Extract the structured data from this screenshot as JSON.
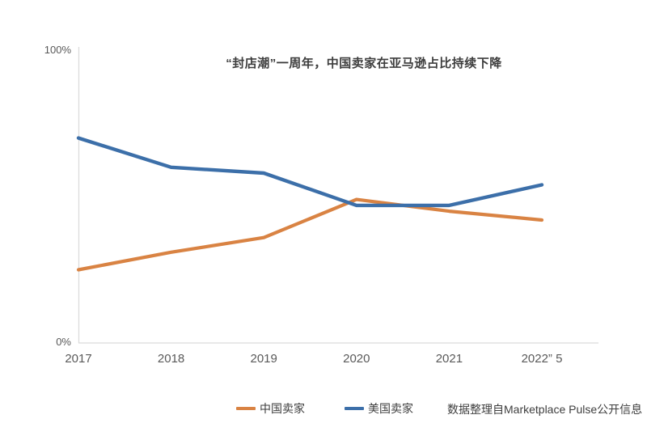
{
  "title": {
    "text": "“封店潮”一周年，中国卖家在亚马逊占比持续下降"
  },
  "y_axis": {
    "top_label": "100%",
    "bottom_label": "0%"
  },
  "legend": {
    "items": [
      {
        "label": "中国卖家",
        "color": "#d98343"
      },
      {
        "label": "美国卖家",
        "color": "#3c6fa9"
      }
    ]
  },
  "source_note": "数据整理自Marketplace Pulse公开信息",
  "colors": {
    "axis_line": "#d9d9d9",
    "background": "#ffffff"
  },
  "chart_data": {
    "type": "line",
    "title": "“封店潮”一周年，中国卖家在亚马逊占比持续下降",
    "categories": [
      "2017",
      "2018",
      "2019",
      "2020",
      "2021",
      "2022” 5"
    ],
    "series": [
      {
        "name": "中国卖家",
        "color": "#d98343",
        "values": [
          25,
          31,
          36,
          49,
          45,
          42
        ]
      },
      {
        "name": "美国卖家",
        "color": "#3c6fa9",
        "values": [
          70,
          60,
          58,
          47,
          47,
          54
        ]
      }
    ],
    "ylim": [
      0,
      100
    ],
    "ytick_labels": [
      "0%",
      "100%"
    ],
    "xlabel": "",
    "ylabel": "",
    "grid": false,
    "legend_position": "bottom",
    "source": "数据整理自Marketplace Pulse公开信息"
  }
}
